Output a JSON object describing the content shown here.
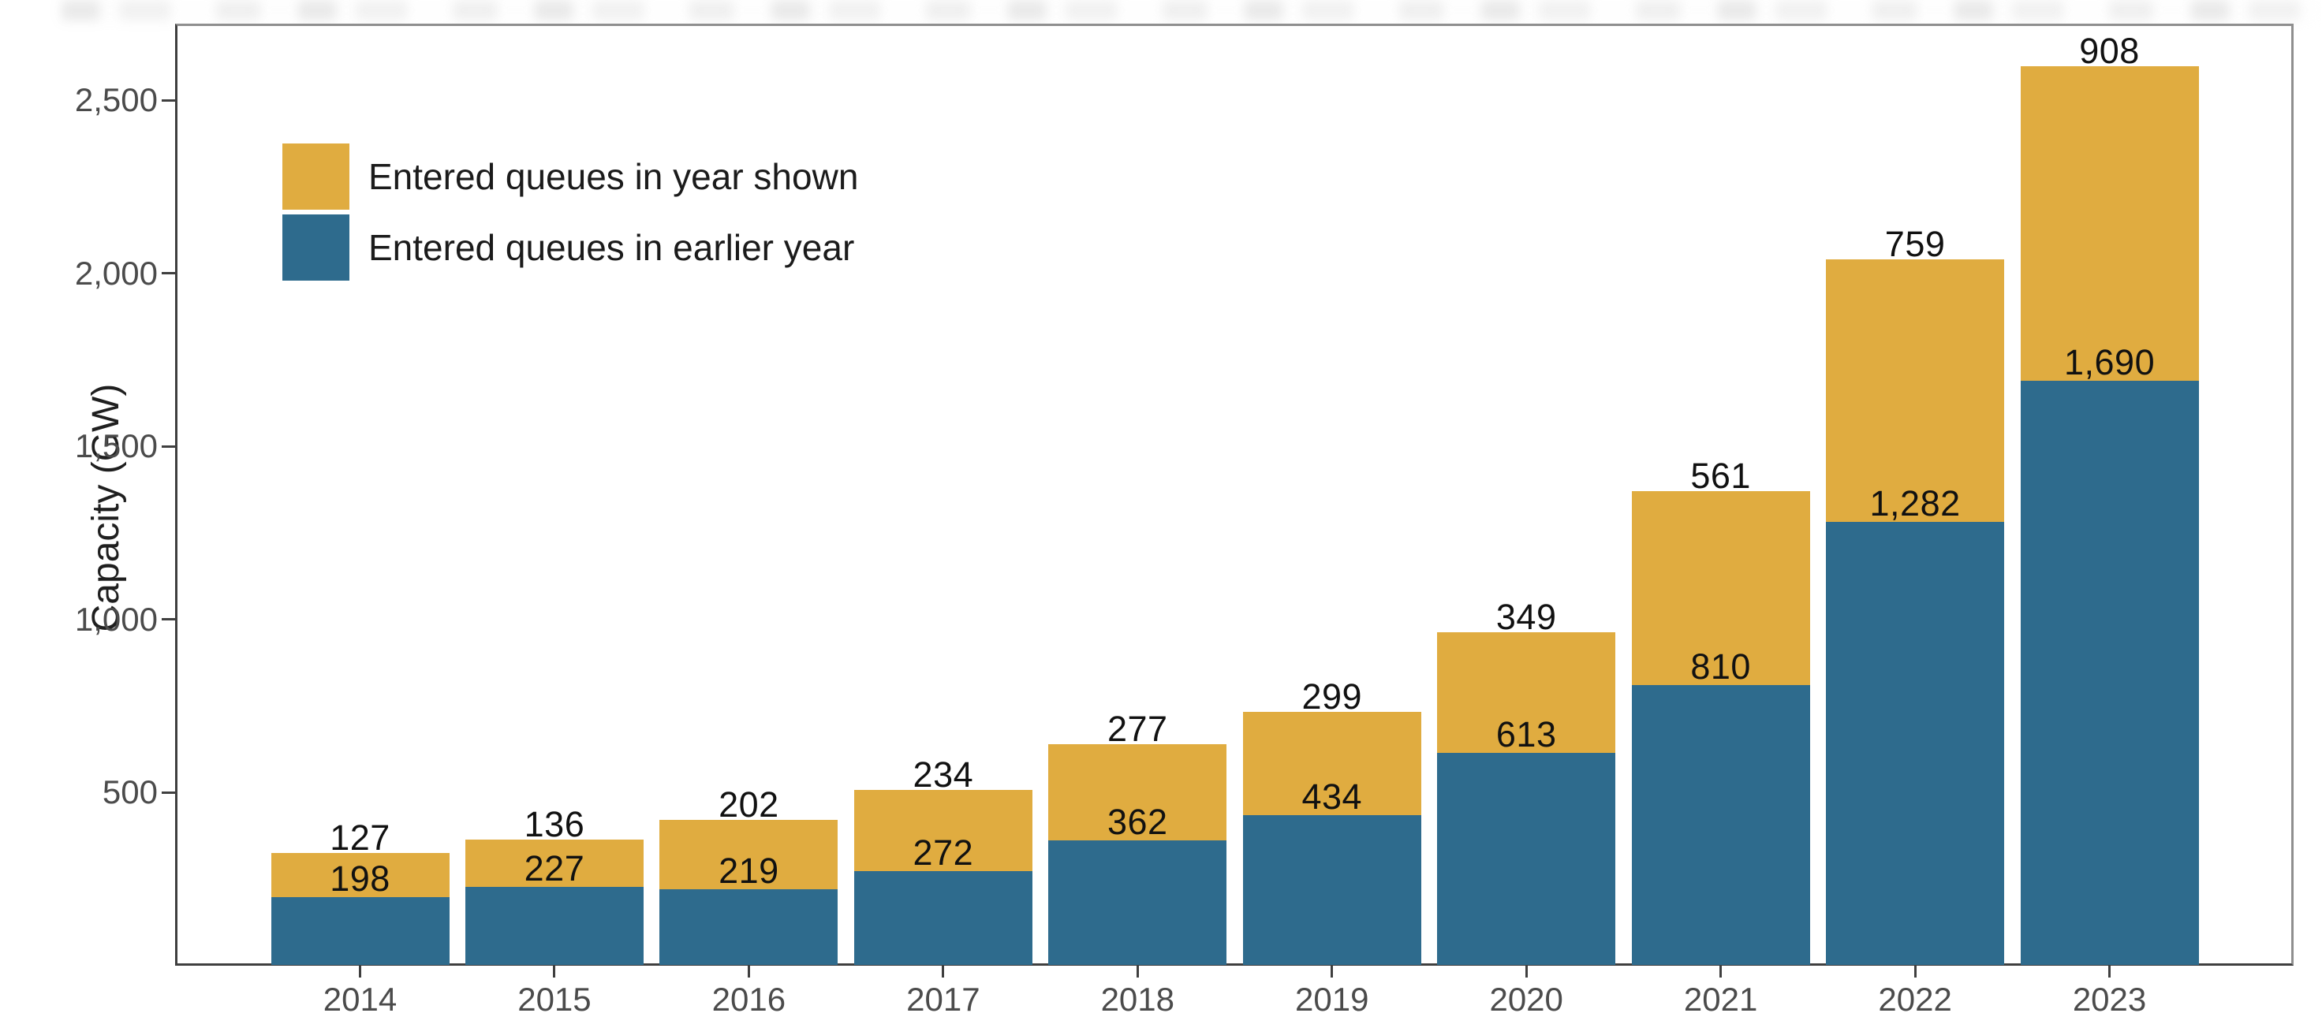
{
  "figure": {
    "y_axis_title": "Capacity (GW)",
    "legend": [
      {
        "label": "Entered queues in year shown",
        "color": "#E0AC40"
      },
      {
        "label": "Entered queues in earlier year",
        "color": "#2E6B8D"
      }
    ]
  },
  "chart_data": {
    "type": "bar",
    "stacked": true,
    "title": "",
    "xlabel": "",
    "ylabel": "Capacity (GW)",
    "categories": [
      "2014",
      "2015",
      "2016",
      "2017",
      "2018",
      "2019",
      "2020",
      "2021",
      "2022",
      "2023"
    ],
    "series": [
      {
        "name": "Entered queues in earlier year",
        "color": "#2E6B8D",
        "values": [
          198,
          227,
          219,
          272,
          362,
          434,
          613,
          810,
          1282,
          1690
        ],
        "labels": [
          "198",
          "227",
          "219",
          "272",
          "362",
          "434",
          "613",
          "810",
          "1,282",
          "1,690"
        ]
      },
      {
        "name": "Entered queues in year shown",
        "color": "#E0AC40",
        "values": [
          127,
          136,
          202,
          234,
          277,
          299,
          349,
          561,
          759,
          908
        ],
        "labels": [
          "127",
          "136",
          "202",
          "234",
          "277",
          "299",
          "349",
          "561",
          "759",
          "908"
        ]
      }
    ],
    "totals": [
      325,
      363,
      421,
      506,
      639,
      733,
      962,
      1371,
      2041,
      2598
    ],
    "y_ticks": [
      "500",
      "1,000",
      "1,500",
      "2,000",
      "2,500"
    ],
    "y_tick_values": [
      500,
      1000,
      1500,
      2000,
      2500
    ],
    "ylim": [
      0,
      2720
    ],
    "grid": false,
    "legend_position": "top-left-inside",
    "value_label_placement": {
      "top_series_label": "above-bar-total-position",
      "bottom_series_label": "above-segment-boundary"
    }
  }
}
